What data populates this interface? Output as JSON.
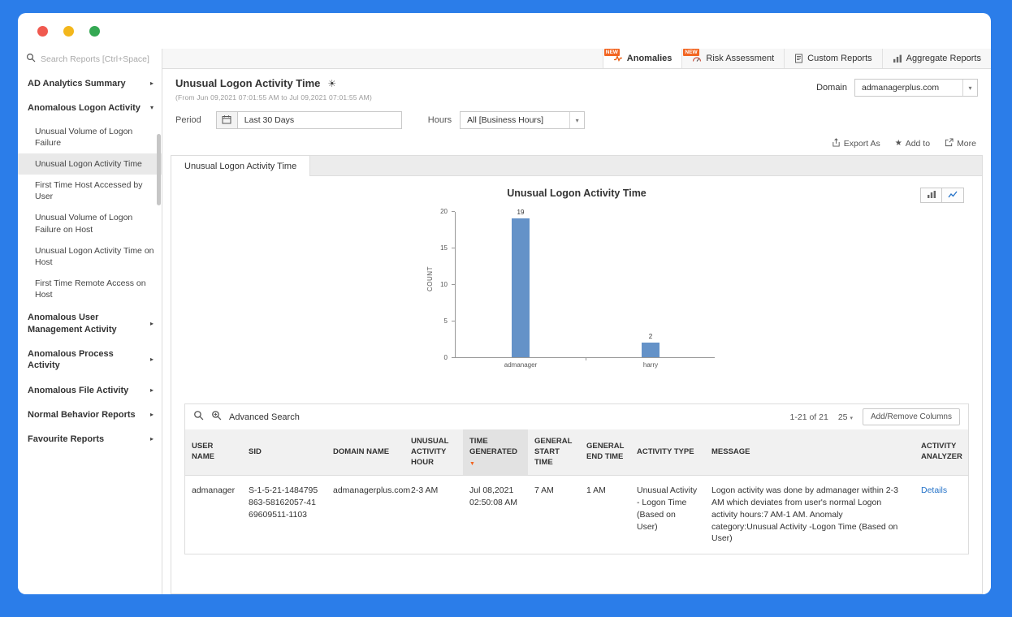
{
  "topnav": {
    "tabs": [
      {
        "label": "Anomalies",
        "badge": "NEW",
        "active": true,
        "icon": "anomalies-icon"
      },
      {
        "label": "Risk Assessment",
        "badge": "NEW",
        "active": false,
        "icon": "risk-assessment-icon"
      },
      {
        "label": "Custom Reports",
        "badge": "",
        "active": false,
        "icon": "custom-reports-icon"
      },
      {
        "label": "Aggregate Reports",
        "badge": "",
        "active": false,
        "icon": "aggregate-reports-icon"
      }
    ]
  },
  "sidebar": {
    "search_placeholder": "Search Reports [Ctrl+Space]",
    "groups": [
      {
        "label": "AD Analytics Summary",
        "expanded": false,
        "children": []
      },
      {
        "label": "Anomalous Logon Activity",
        "expanded": true,
        "children": [
          {
            "label": "Unusual Volume of Logon Failure",
            "selected": false
          },
          {
            "label": "Unusual Logon Activity Time",
            "selected": true
          },
          {
            "label": "First Time Host Accessed by User",
            "selected": false
          },
          {
            "label": "Unusual Volume of Logon Failure on Host",
            "selected": false
          },
          {
            "label": "Unusual Logon Activity Time on Host",
            "selected": false
          },
          {
            "label": "First Time Remote Access on Host",
            "selected": false
          }
        ]
      },
      {
        "label": "Anomalous User Management Activity",
        "expanded": false,
        "children": []
      },
      {
        "label": "Anomalous Process Activity",
        "expanded": false,
        "children": []
      },
      {
        "label": "Anomalous File Activity",
        "expanded": false,
        "children": []
      },
      {
        "label": "Normal Behavior Reports",
        "expanded": false,
        "children": []
      },
      {
        "label": "Favourite Reports",
        "expanded": false,
        "children": []
      }
    ]
  },
  "report_header": {
    "title": "Unusual Logon Activity Time",
    "date_range": "(From Jun 09,2021 07:01:55 AM to Jul 09,2021 07:01:55 AM)",
    "domain_label": "Domain",
    "domain_value": "admanagerplus.com"
  },
  "filters": {
    "period_label": "Period",
    "period_value": "Last 30 Days",
    "hours_label": "Hours",
    "hours_value": "All [Business Hours]"
  },
  "toolbar": {
    "export_label": "Export As",
    "add_to_label": "Add to",
    "more_label": "More"
  },
  "report_tab_label": "Unusual Logon Activity Time",
  "chart_data": {
    "type": "bar",
    "title": "Unusual Logon Activity Time",
    "categories": [
      "admanager",
      "harry"
    ],
    "values": [
      19,
      2
    ],
    "xlabel": "",
    "ylabel": "COUNT",
    "ylim": [
      0,
      20
    ],
    "yticks": [
      0,
      5,
      10,
      15,
      20
    ],
    "bar_color": "#6492c8",
    "grid": false,
    "legend_position": "none"
  },
  "table": {
    "advanced_search_label": "Advanced Search",
    "pagination_text": "1-21 of 21",
    "page_size": "25",
    "add_remove_columns_label": "Add/Remove Columns",
    "columns": [
      {
        "label": "USER NAME",
        "sorted": false
      },
      {
        "label": "SID",
        "sorted": false
      },
      {
        "label": "DOMAIN NAME",
        "sorted": false
      },
      {
        "label": "UNUSUAL ACTIVITY HOUR",
        "sorted": false
      },
      {
        "label": "TIME GENERATED",
        "sorted": true
      },
      {
        "label": "GENERAL START TIME",
        "sorted": false
      },
      {
        "label": "GENERAL END TIME",
        "sorted": false
      },
      {
        "label": "ACTIVITY TYPE",
        "sorted": false
      },
      {
        "label": "MESSAGE",
        "sorted": false
      },
      {
        "label": "ACTIVITY ANALYZER",
        "sorted": false
      }
    ],
    "rows": [
      {
        "cells": [
          "admanager",
          "S-1-5-21-1484795863-58162057-4169609511-1103",
          "admanagerplus.com",
          "2-3 AM",
          "Jul 08,2021 02:50:08 AM",
          "7 AM",
          "1 AM",
          "Unusual Activity - Logon Time (Based on User)",
          "Logon activity was done by admanager within 2-3 AM which deviates from user's normal Logon activity hours:7 AM-1 AM. Anomaly category:Unusual Activity -Logon Time (Based on User)",
          "Details"
        ],
        "link_cell": 9
      }
    ]
  }
}
